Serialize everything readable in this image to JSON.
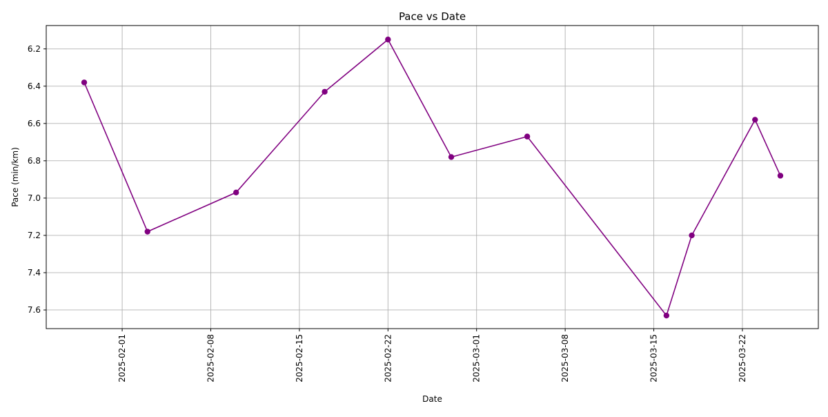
{
  "chart_data": {
    "type": "line",
    "title": "Pace vs Date",
    "xlabel": "Date",
    "ylabel": "Pace (min/km)",
    "y_inverted": true,
    "ylim": [
      7.7,
      6.075
    ],
    "xlim": [
      "2025-01-26",
      "2025-03-28"
    ],
    "grid": true,
    "x_ticks": [
      "2025-02-01",
      "2025-02-08",
      "2025-02-15",
      "2025-02-22",
      "2025-03-01",
      "2025-03-08",
      "2025-03-15",
      "2025-03-22"
    ],
    "y_ticks": [
      "6.2",
      "6.4",
      "6.6",
      "6.8",
      "7.0",
      "7.2",
      "7.4",
      "7.6"
    ],
    "series": [
      {
        "color": "#800080",
        "marker": "circle",
        "points": [
          {
            "x": "2025-01-29",
            "y": 6.38
          },
          {
            "x": "2025-02-03",
            "y": 7.18
          },
          {
            "x": "2025-02-10",
            "y": 6.97
          },
          {
            "x": "2025-02-17",
            "y": 6.43
          },
          {
            "x": "2025-02-22",
            "y": 6.15
          },
          {
            "x": "2025-02-27",
            "y": 6.78
          },
          {
            "x": "2025-03-05",
            "y": 6.67
          },
          {
            "x": "2025-03-16",
            "y": 7.63
          },
          {
            "x": "2025-03-18",
            "y": 7.2
          },
          {
            "x": "2025-03-23",
            "y": 6.58
          },
          {
            "x": "2025-03-25",
            "y": 6.88
          }
        ]
      }
    ]
  }
}
